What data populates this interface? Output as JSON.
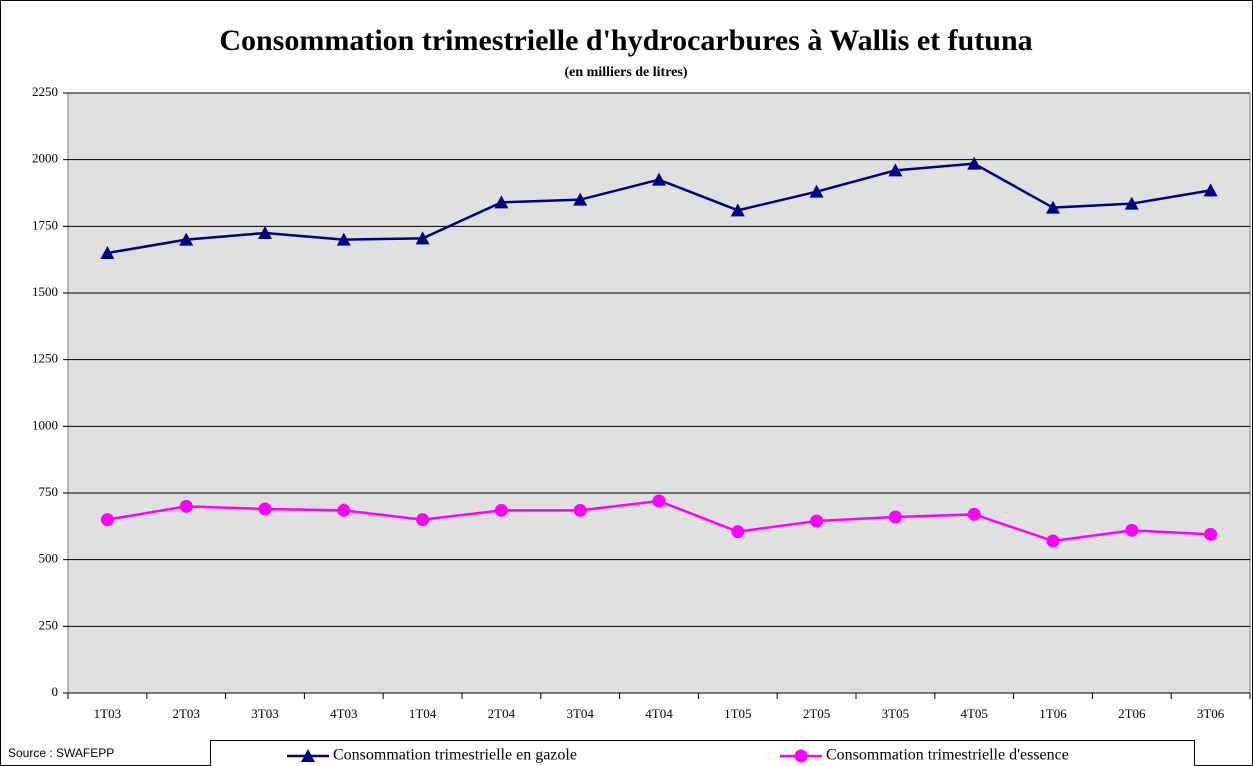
{
  "chart_data": {
    "type": "line",
    "title": "Consommation trimestrielle d'hydrocarbures à Wallis et futuna",
    "subtitle": "(en milliers de litres)",
    "source": "Source : SWAFEPP",
    "categories": [
      "1T03",
      "2T03",
      "3T03",
      "4T03",
      "1T04",
      "2T04",
      "3T04",
      "4T04",
      "1T05",
      "2T05",
      "3T05",
      "4T05",
      "1T06",
      "2T06",
      "3T06"
    ],
    "series": [
      {
        "name": "Consommation trimestrielle en gazole",
        "color": "#000080",
        "marker": "triangle",
        "values": [
          1650,
          1700,
          1725,
          1700,
          1705,
          1840,
          1850,
          1925,
          1810,
          1880,
          1960,
          1985,
          1820,
          1835,
          1885
        ]
      },
      {
        "name": "Consommation trimestrielle d'essence",
        "color": "#ff00ff",
        "marker": "circle",
        "values": [
          650,
          700,
          690,
          685,
          650,
          685,
          685,
          720,
          605,
          645,
          660,
          670,
          570,
          610,
          595
        ]
      }
    ],
    "ylim": [
      0,
      2250
    ],
    "yticks": [
      0,
      250,
      500,
      750,
      1000,
      1250,
      1500,
      1750,
      2000,
      2250
    ],
    "grid": true,
    "legend": "bottom"
  }
}
